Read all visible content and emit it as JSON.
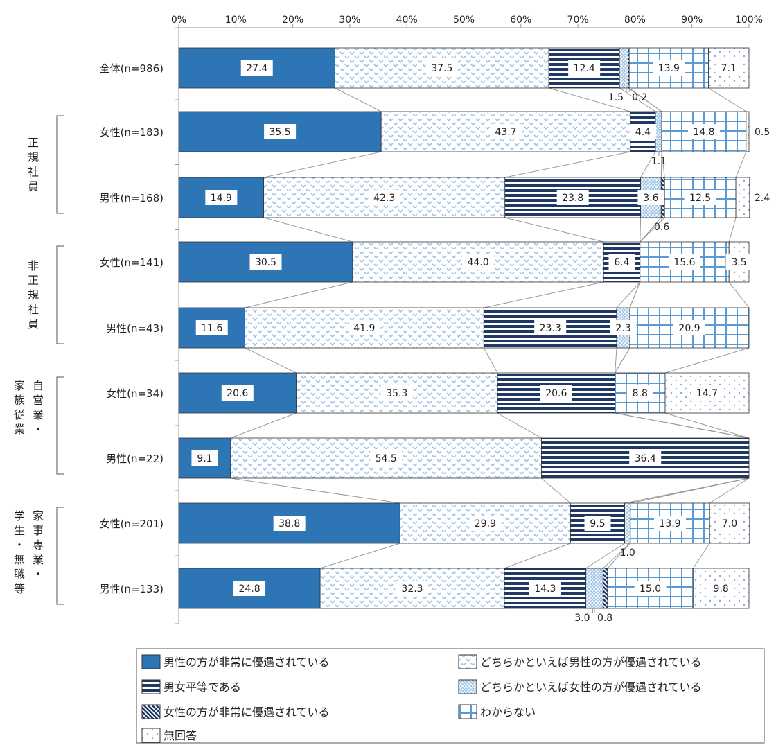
{
  "chart_data": {
    "type": "bar",
    "stacked": true,
    "orientation": "horizontal",
    "xlim": [
      0,
      100
    ],
    "x_ticks": [
      "0%",
      "10%",
      "20%",
      "30%",
      "40%",
      "50%",
      "60%",
      "70%",
      "80%",
      "90%",
      "100%"
    ],
    "categories": [
      "全体(n=986)",
      "女性(n=183)",
      "男性(n=168)",
      "女性(n=141)",
      "男性(n=43)",
      "女性(n=34)",
      "男性(n=22)",
      "女性(n=201)",
      "男性(n=133)"
    ],
    "groups": [
      {
        "label_lines": [
          "正",
          "規",
          "社",
          "員"
        ],
        "rows": [
          1,
          2
        ]
      },
      {
        "label_lines": [
          "非",
          "正",
          "規",
          "社",
          "員"
        ],
        "rows": [
          3,
          4
        ]
      },
      {
        "label_lines": [
          "自",
          "営",
          "業",
          "・"
        ],
        "label_lines_2": [
          "家",
          "族",
          "従",
          "業"
        ],
        "rows": [
          5,
          6
        ]
      },
      {
        "label_lines": [
          "家",
          "事",
          "専",
          "業",
          "・"
        ],
        "label_lines_2": [
          "学",
          "生",
          "・",
          "無",
          "職",
          "等"
        ],
        "rows": [
          7,
          8
        ]
      }
    ],
    "series": [
      {
        "name": "男性の方が非常に優遇されている",
        "color": "#2e75b6",
        "pattern": "solid",
        "values": [
          27.4,
          35.5,
          14.9,
          30.5,
          11.6,
          20.6,
          9.1,
          38.8,
          24.8
        ]
      },
      {
        "name": "どちらかといえば男性の方が優遇されている",
        "color": "#9dc3e6",
        "pattern": "zigzag",
        "values": [
          37.5,
          43.7,
          42.3,
          44.0,
          41.9,
          35.3,
          54.5,
          29.9,
          32.3
        ]
      },
      {
        "name": "男女平等である",
        "color": "#1f3864",
        "pattern": "hstripe",
        "values": [
          12.4,
          4.4,
          23.8,
          6.4,
          23.3,
          20.6,
          36.4,
          9.5,
          14.3
        ]
      },
      {
        "name": "どちらかといえば女性の方が優遇されている",
        "color": "#9dc3e6",
        "pattern": "crosshatch",
        "values": [
          1.5,
          1.1,
          3.6,
          0,
          2.3,
          0,
          0,
          1.0,
          3.0
        ]
      },
      {
        "name": "女性の方が非常に優遇されている",
        "color": "#1f3864",
        "pattern": "diagonal",
        "values": [
          0.2,
          0,
          0.6,
          0,
          0,
          0,
          0,
          0,
          0.8
        ]
      },
      {
        "name": "わからない",
        "color": "#5b9bd5",
        "pattern": "grid",
        "values": [
          13.9,
          14.8,
          12.5,
          15.6,
          20.9,
          8.8,
          0,
          13.9,
          15.0
        ]
      },
      {
        "name": "無回答",
        "color": "#8faadc",
        "pattern": "dots",
        "values": [
          7.1,
          0.5,
          2.4,
          3.5,
          0,
          14.7,
          0,
          7.0,
          9.8
        ]
      }
    ],
    "data_labels": [
      {
        "row": 0,
        "series": 0,
        "text": "27.4"
      },
      {
        "row": 0,
        "series": 1,
        "text": "37.5"
      },
      {
        "row": 0,
        "series": 2,
        "text": "12.4"
      },
      {
        "row": 0,
        "series": 5,
        "text": "13.9"
      },
      {
        "row": 0,
        "series": 6,
        "text": "7.1"
      },
      {
        "row": 1,
        "series": 0,
        "text": "35.5"
      },
      {
        "row": 1,
        "series": 1,
        "text": "43.7"
      },
      {
        "row": 1,
        "series": 2,
        "text": "4.4"
      },
      {
        "row": 1,
        "series": 5,
        "text": "14.8"
      },
      {
        "row": 2,
        "series": 0,
        "text": "14.9"
      },
      {
        "row": 2,
        "series": 1,
        "text": "42.3"
      },
      {
        "row": 2,
        "series": 2,
        "text": "23.8"
      },
      {
        "row": 2,
        "series": 3,
        "text": "3.6"
      },
      {
        "row": 2,
        "series": 5,
        "text": "12.5"
      },
      {
        "row": 3,
        "series": 0,
        "text": "30.5"
      },
      {
        "row": 3,
        "series": 1,
        "text": "44.0"
      },
      {
        "row": 3,
        "series": 2,
        "text": "6.4"
      },
      {
        "row": 3,
        "series": 5,
        "text": "15.6"
      },
      {
        "row": 3,
        "series": 6,
        "text": "3.5"
      },
      {
        "row": 4,
        "series": 0,
        "text": "11.6"
      },
      {
        "row": 4,
        "series": 1,
        "text": "41.9"
      },
      {
        "row": 4,
        "series": 2,
        "text": "23.3"
      },
      {
        "row": 4,
        "series": 3,
        "text": "2.3"
      },
      {
        "row": 4,
        "series": 5,
        "text": "20.9"
      },
      {
        "row": 5,
        "series": 0,
        "text": "20.6"
      },
      {
        "row": 5,
        "series": 1,
        "text": "35.3"
      },
      {
        "row": 5,
        "series": 2,
        "text": "20.6"
      },
      {
        "row": 5,
        "series": 5,
        "text": "8.8"
      },
      {
        "row": 5,
        "series": 6,
        "text": "14.7"
      },
      {
        "row": 6,
        "series": 0,
        "text": "9.1"
      },
      {
        "row": 6,
        "series": 1,
        "text": "54.5"
      },
      {
        "row": 6,
        "series": 2,
        "text": "36.4"
      },
      {
        "row": 7,
        "series": 0,
        "text": "38.8"
      },
      {
        "row": 7,
        "series": 1,
        "text": "29.9"
      },
      {
        "row": 7,
        "series": 2,
        "text": "9.5"
      },
      {
        "row": 7,
        "series": 5,
        "text": "13.9"
      },
      {
        "row": 7,
        "series": 6,
        "text": "7.0"
      },
      {
        "row": 8,
        "series": 0,
        "text": "24.8"
      },
      {
        "row": 8,
        "series": 1,
        "text": "32.3"
      },
      {
        "row": 8,
        "series": 2,
        "text": "14.3"
      },
      {
        "row": 8,
        "series": 5,
        "text": "15.0"
      },
      {
        "row": 8,
        "series": 6,
        "text": "9.8"
      }
    ],
    "outside_labels": [
      {
        "row": 0,
        "text": "1.5",
        "anchor_pct": 78.5,
        "placement": "below-left"
      },
      {
        "row": 0,
        "text": "0.2",
        "anchor_pct": 79.0,
        "placement": "below-right"
      },
      {
        "row": 1,
        "text": "0.5",
        "anchor_pct": 100,
        "placement": "right"
      },
      {
        "row": 1,
        "text": "1.1",
        "anchor_pct": 84.2,
        "placement": "below"
      },
      {
        "row": 2,
        "text": "2.4",
        "anchor_pct": 100,
        "placement": "right"
      },
      {
        "row": 2,
        "text": "0.6",
        "anchor_pct": 84.7,
        "placement": "below"
      },
      {
        "row": 7,
        "text": "1.0",
        "anchor_pct": 78.7,
        "placement": "below"
      },
      {
        "row": 8,
        "text": "3.0",
        "anchor_pct": 72.6,
        "placement": "below-left"
      },
      {
        "row": 8,
        "text": "0.8",
        "anchor_pct": 72.9,
        "placement": "below-right"
      }
    ],
    "legend": {
      "placement": "bottom",
      "columns": 2,
      "order": [
        0,
        1,
        2,
        3,
        4,
        5,
        6
      ]
    },
    "connector_lines": true,
    "grid": false
  }
}
